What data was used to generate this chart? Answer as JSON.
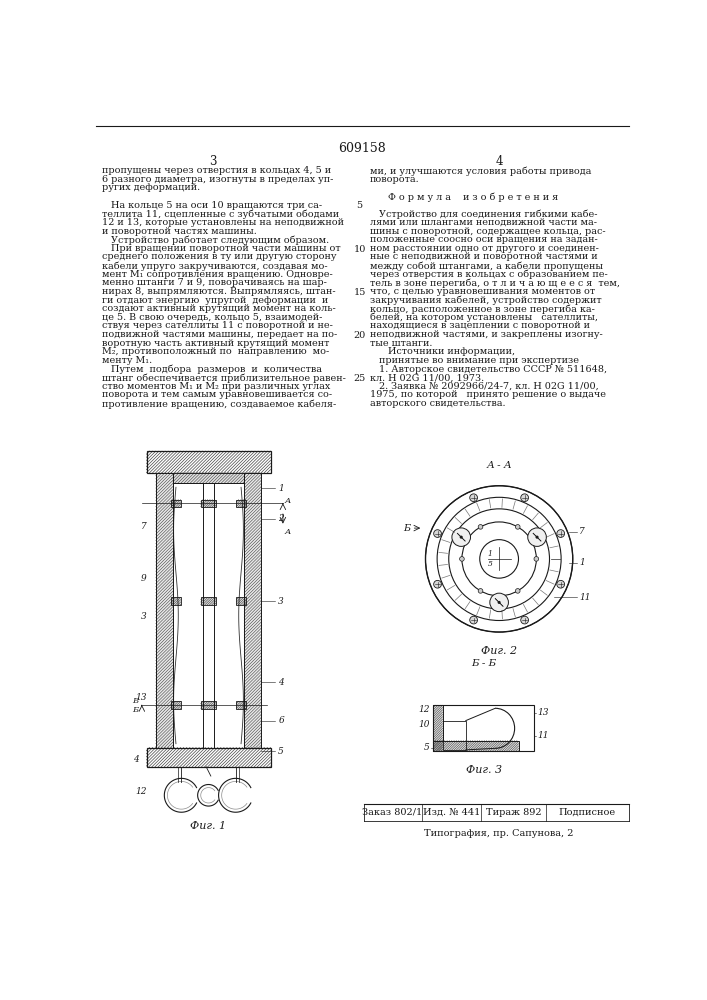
{
  "patent_number": "609158",
  "page_left": "3",
  "page_right": "4",
  "background_color": "#ffffff",
  "text_color": "#1a1a1a",
  "left_col_text": [
    "пропущены через отверстия в кольцах 4, 5 и",
    "6 разного диаметра, изогнуты в пределах уп-",
    "ругих деформаций.",
    "",
    "   На кольце 5 на оси 10 вращаются три са-",
    "теллита 11, сцепленные с зубчатыми ободами",
    "12 и 13, которые установлены на неподвижной",
    "и поворотной частях машины.",
    "   Устройство работает следующим образом.",
    "   При вращении поворотной части машины от",
    "среднего положения в ту или другую сторону",
    "кабели упруго закручиваются, создавая мо-",
    "мент М₁ сопротивления вращению. Одновре-",
    "менно штанги 7 и 9, поворачиваясь на шар-",
    "нирах 8, выпрямляются. Выпрямляясь, штан-",
    "ги отдают энергию  упругой  деформации  и",
    "создают активный крутящий момент на коль-",
    "це 5. В свою очередь, кольцо 5, взаимодей-",
    "ствуя через сателлиты 11 с поворотной и не-",
    "подвижной частями машины, передает на по-",
    "воротную часть активный крутящий момент",
    "М₂, противоположный по  направлению  мо-",
    "менту М₁.",
    "   Путем  подбора  размеров  и  количества",
    "штанг обеспечивается приблизительное равен-",
    "ство моментов М₁ и М₂ при различных углах",
    "поворота и тем самым уравновешивается со-",
    "противление вращению, создаваемое кабеля-"
  ],
  "right_col_text": [
    "ми, и улучшаются условия работы привода",
    "поворота.",
    "",
    "      Ф о р м у л а    и з о б р е т е н и я",
    "",
    "   Устройство для соединения гибкими кабе-",
    "лями или шлангами неподвижной части ма-",
    "шины с поворотной, содержащее кольца, рас-",
    "положенные соосно оси вращения на задан-",
    "ном расстоянии одно от другого и соединен-",
    "ные с неподвижной и поворотной частями и",
    "между собой штангами, а кабели пропущены",
    "через отверстия в кольцах с образованием пе-",
    "тель в зоне перегиба, о т л и ч а ю щ е е с я  тем,",
    "что, с целью уравновешивания моментов от",
    "закручивания кабелей, устройство содержит",
    "кольцо, расположенное в зоне перегиба ка-",
    "белей, на котором установлены   сателлиты,",
    "находящиеся в зацеплении с поворотной и",
    "неподвижной частями, и закреплены изогну-",
    "тые штанги.",
    "      Источники информации,",
    "   принятые во внимание при экспертизе",
    "   1. Авторское свидетельство СССР № 511648,",
    "кл. Н 02G 11/00, 1973.",
    "   2. Заявка № 2092966/24-7, кл. Н 02G 11/00,",
    "1975, по которой   принято решение о выдаче",
    "авторского свидетельства."
  ],
  "bottom_bar": {
    "order": "Заказ 802/1",
    "izd": "Изд. № 441",
    "tirazh": "Тираж 892",
    "podpisnoe": "Подписное"
  },
  "typography": "Типография, пр. Сапунова, 2"
}
